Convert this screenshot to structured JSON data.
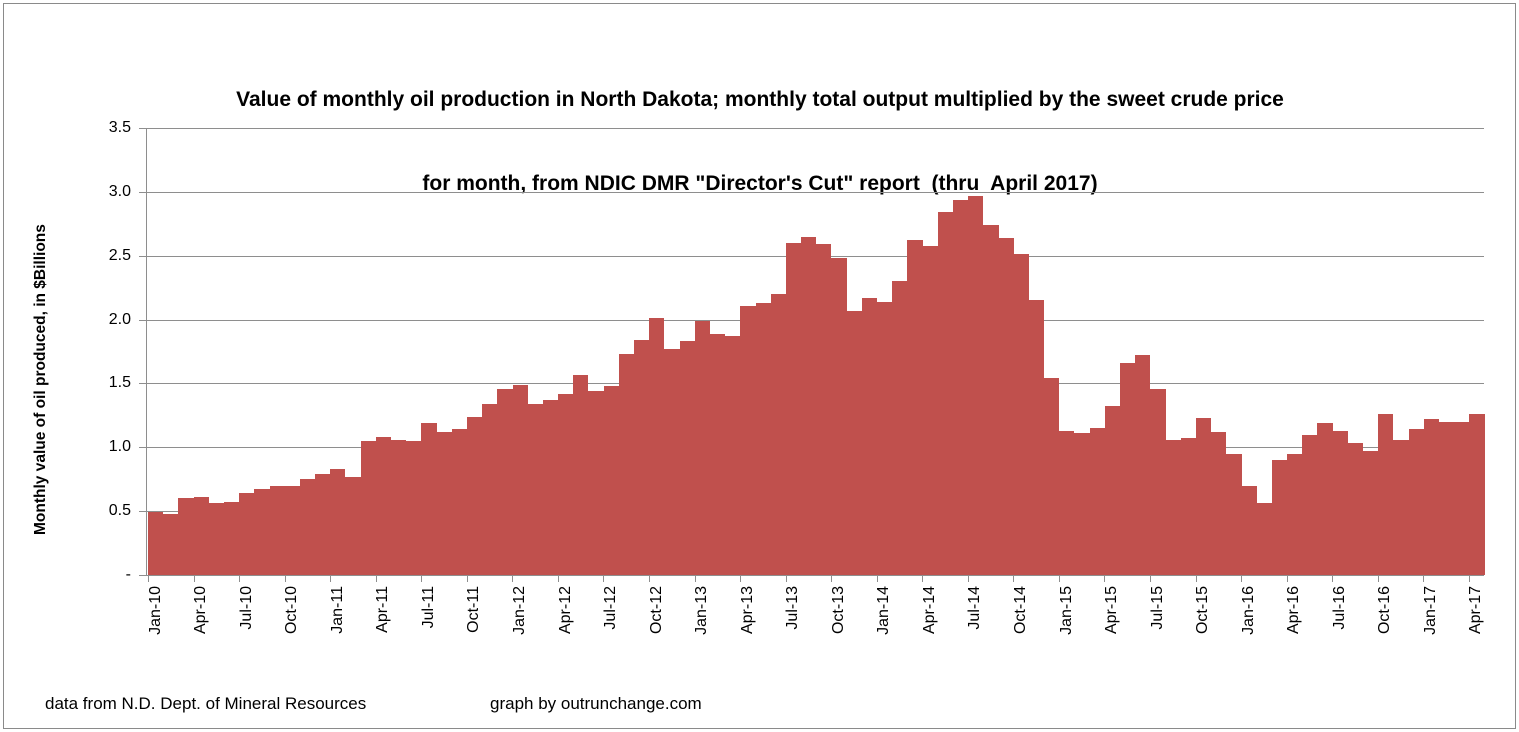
{
  "header": {
    "title_line1": "Value of monthly oil production in North Dakota; monthly total output multiplied by the sweet crude price",
    "title_line2": "for month, from NDIC DMR \"Director's Cut\" report  (thru  April 2017)"
  },
  "y_axis": {
    "title": "Monthly value of oil produced, in $Billions",
    "tick_labels": [
      "3.5",
      "3.0",
      "2.5",
      "2.0",
      "1.5",
      "1.0",
      "0.5",
      "-"
    ],
    "tick_values": [
      3.5,
      3.0,
      2.5,
      2.0,
      1.5,
      1.0,
      0.5,
      0
    ]
  },
  "footer": {
    "source": "data from N.D. Dept. of Mineral Resources",
    "credit": "graph by outrunchange.com"
  },
  "colors": {
    "bar": "#C0504D",
    "axis": "#8E8E8E",
    "frame_border": "#8A8A8A",
    "text": "#000000"
  },
  "chart_data": {
    "type": "bar",
    "title": "Value of monthly oil production in North Dakota; monthly total output multiplied by the sweet crude price for month, from NDIC DMR \"Director's Cut\" report  (thru  April 2017)",
    "xlabel": "",
    "ylabel": "Monthly value of oil produced, in $Billions",
    "ylim": [
      0,
      3.5
    ],
    "y_tick_step": 0.5,
    "x_tick_label_every_n_months": 3,
    "grid": true,
    "legend": false,
    "bar_gap": 0,
    "categories": [
      "Jan-10",
      "Feb-10",
      "Mar-10",
      "Apr-10",
      "May-10",
      "Jun-10",
      "Jul-10",
      "Aug-10",
      "Sep-10",
      "Oct-10",
      "Nov-10",
      "Dec-10",
      "Jan-11",
      "Feb-11",
      "Mar-11",
      "Apr-11",
      "May-11",
      "Jun-11",
      "Jul-11",
      "Aug-11",
      "Sep-11",
      "Oct-11",
      "Nov-11",
      "Dec-11",
      "Jan-12",
      "Feb-12",
      "Mar-12",
      "Apr-12",
      "May-12",
      "Jun-12",
      "Jul-12",
      "Aug-12",
      "Sep-12",
      "Oct-12",
      "Nov-12",
      "Dec-12",
      "Jan-13",
      "Feb-13",
      "Mar-13",
      "Apr-13",
      "May-13",
      "Jun-13",
      "Jul-13",
      "Aug-13",
      "Sep-13",
      "Oct-13",
      "Nov-13",
      "Dec-13",
      "Jan-14",
      "Feb-14",
      "Mar-14",
      "Apr-14",
      "May-14",
      "Jun-14",
      "Jul-14",
      "Aug-14",
      "Sep-14",
      "Oct-14",
      "Nov-14",
      "Dec-14",
      "Jan-15",
      "Feb-15",
      "Mar-15",
      "Apr-15",
      "May-15",
      "Jun-15",
      "Jul-15",
      "Aug-15",
      "Sep-15",
      "Oct-15",
      "Nov-15",
      "Dec-15",
      "Jan-16",
      "Feb-16",
      "Mar-16",
      "Apr-16",
      "May-16",
      "Jun-16",
      "Jul-16",
      "Aug-16",
      "Sep-16",
      "Oct-16",
      "Nov-16",
      "Dec-16",
      "Jan-17",
      "Feb-17",
      "Mar-17",
      "Apr-17"
    ],
    "values": [
      0.49,
      0.48,
      0.6,
      0.61,
      0.56,
      0.57,
      0.64,
      0.67,
      0.7,
      0.7,
      0.75,
      0.79,
      0.83,
      0.77,
      1.05,
      1.08,
      1.06,
      1.05,
      1.19,
      1.12,
      1.14,
      1.24,
      1.34,
      1.46,
      1.49,
      1.34,
      1.37,
      1.42,
      1.57,
      1.44,
      1.48,
      1.73,
      1.84,
      2.01,
      1.77,
      1.83,
      1.99,
      1.89,
      1.87,
      2.11,
      2.13,
      2.2,
      2.6,
      2.65,
      2.59,
      2.48,
      2.07,
      2.17,
      2.14,
      2.3,
      2.62,
      2.58,
      2.84,
      2.94,
      2.97,
      2.74,
      2.64,
      2.51,
      2.15,
      1.54,
      1.13,
      1.11,
      1.15,
      1.32,
      1.66,
      1.72,
      1.46,
      1.06,
      1.07,
      1.23,
      1.12,
      0.95,
      0.7,
      0.56,
      0.9,
      0.95,
      1.1,
      1.19,
      1.13,
      1.03,
      0.97,
      1.26,
      1.06,
      1.14,
      1.22,
      1.2,
      1.2,
      1.26
    ]
  }
}
